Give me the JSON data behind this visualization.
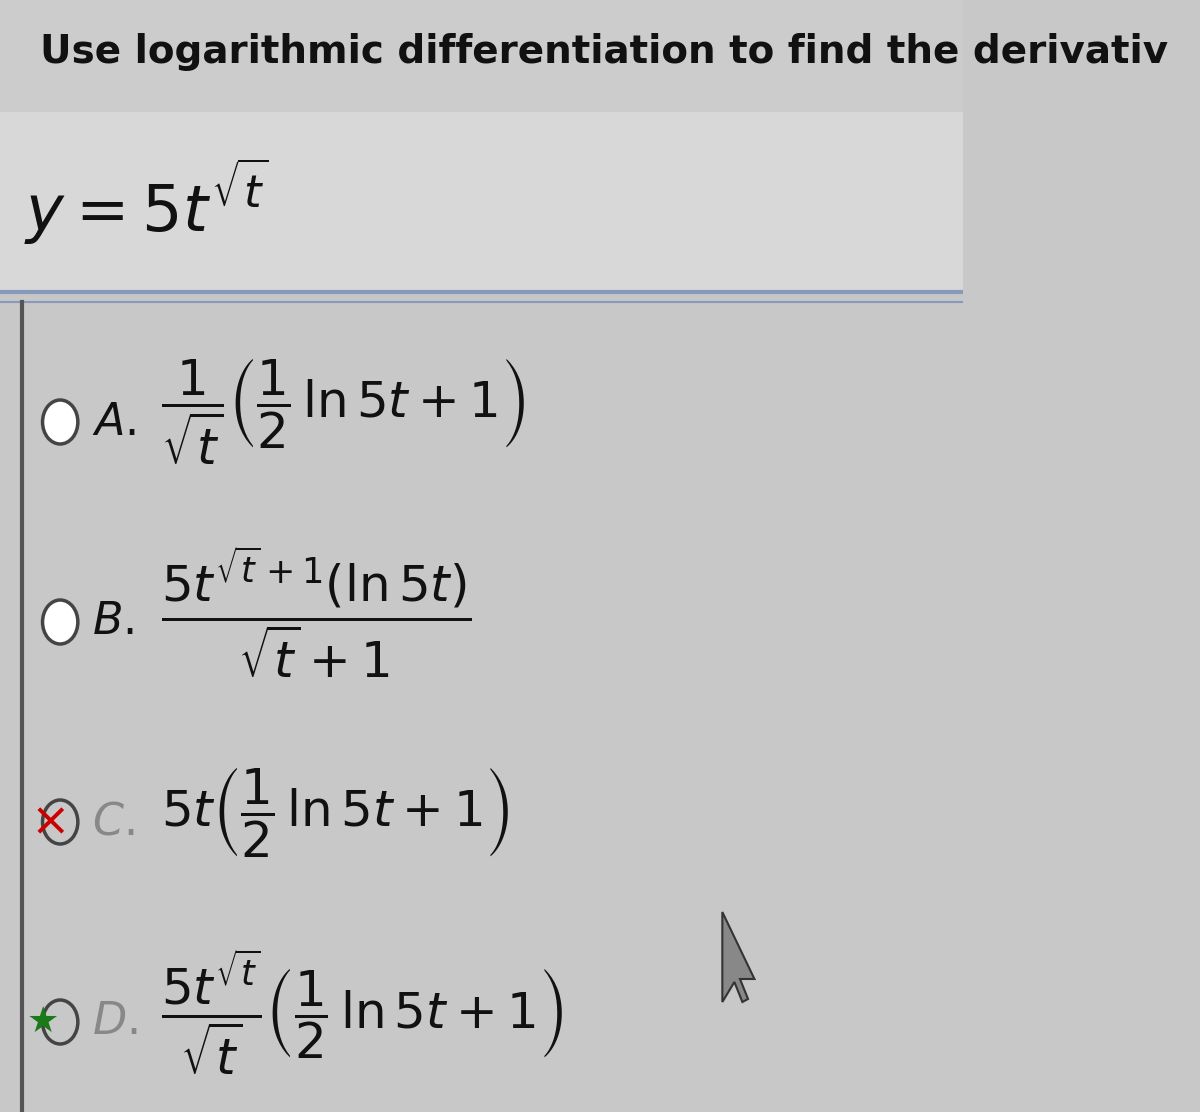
{
  "bg_color": "#c8c8c8",
  "header_text": "Use logarithmic differentiation to find the derivativ",
  "header_color": "#111111",
  "problem_text": "$y = 5t^{\\sqrt{t}}$",
  "divider_color": "#8899aa",
  "circle_color": "#444444",
  "x_color": "#cc0000",
  "star_color": "#1a7a1a",
  "text_color": "#111111",
  "formula_color": "#111111",
  "formula_A": "$\\dfrac{1}{\\sqrt{t}}\\left(\\dfrac{1}{2}\\ln 5t + 1\\right)$",
  "formula_B": "$\\dfrac{5t^{\\sqrt{t}+1}(\\ln 5t)}{\\sqrt{t}+1}$",
  "formula_C": "$5t\\left(\\dfrac{1}{2}\\ln 5t + 1\\right)$",
  "formula_D": "$\\dfrac{5t^{\\sqrt{t}}}{\\sqrt{t}}\\left(\\dfrac{1}{2}\\ln 5t + 1\\right)$"
}
